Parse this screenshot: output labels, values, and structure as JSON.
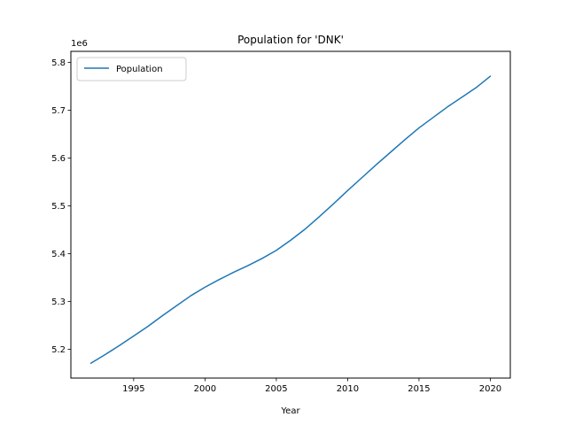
{
  "chart_data": {
    "type": "line",
    "title": "Population for 'DNK'",
    "xlabel": "Year",
    "ylabel": "",
    "y_offset_label": "1e6",
    "y_scale": 1000000,
    "xlim": [
      1990.6,
      2021.4
    ],
    "ylim": [
      5140000,
      5823000
    ],
    "x_ticks": [
      1995,
      2000,
      2005,
      2010,
      2015,
      2020
    ],
    "y_ticks": [
      5200000,
      5300000,
      5400000,
      5500000,
      5600000,
      5700000,
      5800000
    ],
    "y_tick_labels": [
      "5.2",
      "5.3",
      "5.4",
      "5.5",
      "5.6",
      "5.7",
      "5.8"
    ],
    "grid": false,
    "legend_position": "upper-left",
    "series": [
      {
        "name": "Population",
        "color": "#1f77b4",
        "x": [
          1992,
          1993,
          1994,
          1995,
          1996,
          1997,
          1998,
          1999,
          2000,
          2001,
          2002,
          2003,
          2004,
          2005,
          2006,
          2007,
          2008,
          2009,
          2010,
          2011,
          2012,
          2013,
          2014,
          2015,
          2016,
          2017,
          2018,
          2019,
          2020
        ],
        "y": [
          5171000,
          5189000,
          5208000,
          5228000,
          5248000,
          5270000,
          5291000,
          5312000,
          5330000,
          5346000,
          5361000,
          5375000,
          5390000,
          5407000,
          5428000,
          5451000,
          5477000,
          5504000,
          5532000,
          5559000,
          5586000,
          5612000,
          5638000,
          5663000,
          5685000,
          5707000,
          5727000,
          5747000,
          5771000
        ]
      }
    ]
  }
}
